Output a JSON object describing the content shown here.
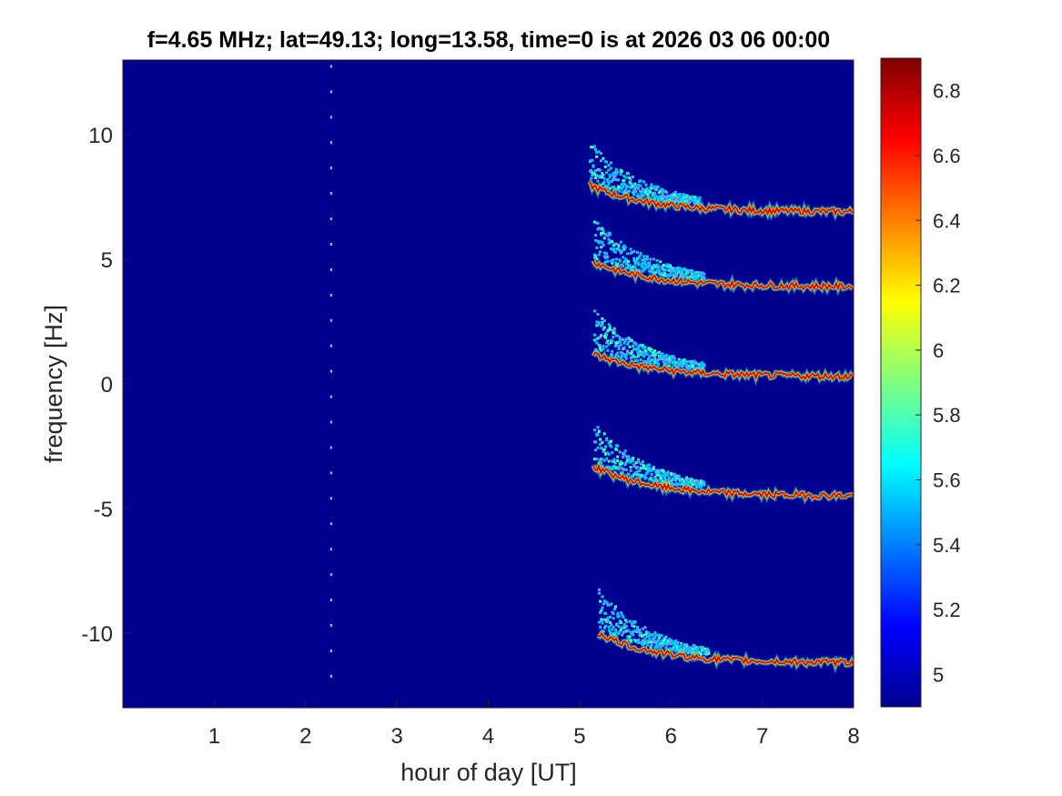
{
  "chart_data": {
    "type": "heatmap",
    "title": "f=4.65 MHz;  lat=49.13; long=13.58, time=0 is at 2026 03 06 00:00",
    "xlabel": "hour of day [UT]",
    "ylabel": "frequency [Hz]",
    "xlim": [
      0,
      8
    ],
    "ylim": [
      -13,
      13
    ],
    "xticks": [
      "1",
      "2",
      "3",
      "4",
      "5",
      "6",
      "7",
      "8"
    ],
    "yticks": [
      "10",
      "5",
      "0",
      "-5",
      "-10"
    ],
    "colorbar": {
      "colormap": "jet",
      "clim": [
        4.9,
        6.9
      ],
      "ticks": [
        "6.8",
        "6.6",
        "6.4",
        "6.2",
        "6",
        "5.8",
        "5.6",
        "5.4",
        "5.2",
        "5"
      ]
    },
    "background_color": "#00008f",
    "traces": [
      {
        "name": "",
        "start_hour": 5.1,
        "end_hour": 8.0,
        "start_freq": 8.0,
        "end_freq": 6.9
      },
      {
        "name": "",
        "start_hour": 5.15,
        "end_hour": 8.0,
        "start_freq": 4.9,
        "end_freq": 3.9
      },
      {
        "name": "",
        "start_hour": 5.15,
        "end_hour": 8.0,
        "start_freq": 1.2,
        "end_freq": 0.3
      },
      {
        "name": "",
        "start_hour": 5.15,
        "end_hour": 8.0,
        "start_freq": -3.3,
        "end_freq": -4.5
      },
      {
        "name": "",
        "start_hour": 5.2,
        "end_hour": 8.0,
        "start_freq": -10.0,
        "end_freq": -11.2
      }
    ],
    "dotted_column_hour": 2.27
  }
}
